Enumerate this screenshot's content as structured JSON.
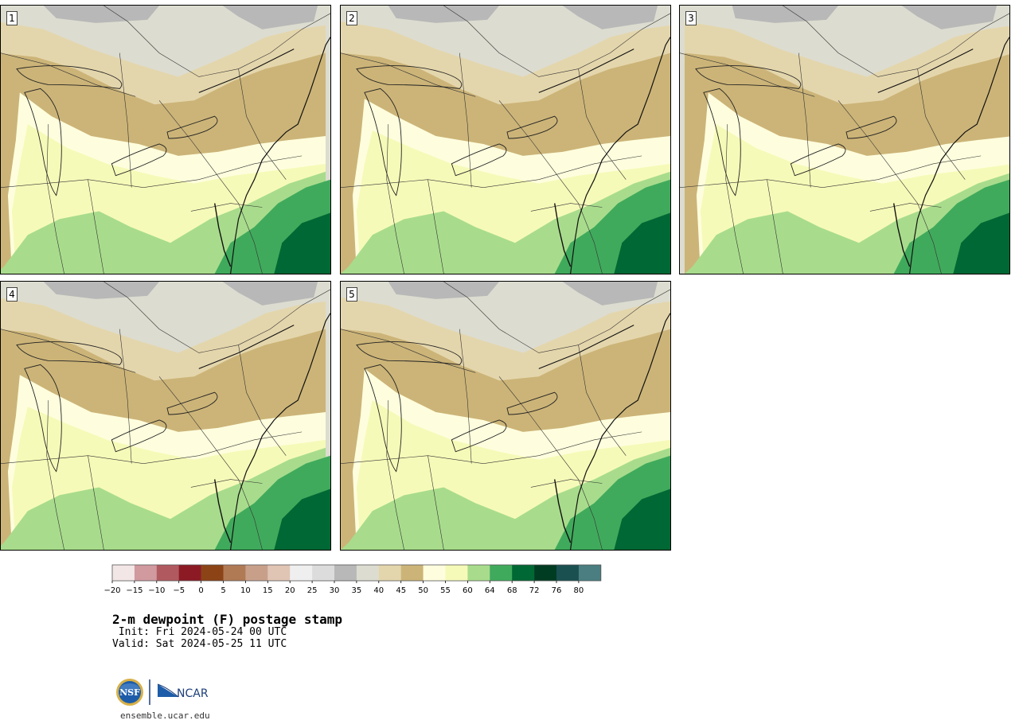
{
  "panels": [
    {
      "label": "1",
      "variant": 0
    },
    {
      "label": "2",
      "variant": 1
    },
    {
      "label": "3",
      "variant": 2
    },
    {
      "label": "4",
      "variant": 3
    },
    {
      "label": "5",
      "variant": 4
    }
  ],
  "colorbar": {
    "colors": [
      "#f3e6e6",
      "#d09a9f",
      "#b05a60",
      "#8c1a24",
      "#8c4416",
      "#b07a55",
      "#c8a08a",
      "#e0c4b4",
      "#efefef",
      "#dcdcdc",
      "#b8b8b8",
      "#dcdcd0",
      "#e4d6ac",
      "#ccb478",
      "#fefede",
      "#f6fab8",
      "#a8dc8c",
      "#40aa5c",
      "#006834",
      "#003c22",
      "#1a5050",
      "#4a7e80"
    ],
    "tick_labels": [
      "−20",
      "−15",
      "−10",
      "−5",
      "0",
      "5",
      "10",
      "15",
      "20",
      "25",
      "30",
      "35",
      "40",
      "45",
      "50",
      "55",
      "60",
      "64",
      "68",
      "72",
      "76",
      "80"
    ]
  },
  "title": "2-m dewpoint (F) postage stamp",
  "init_line": " Init: Fri 2024-05-24 00 UTC",
  "valid_line": "Valid: Sat 2024-05-25 11 UTC",
  "logo": {
    "nsf_text": "NSF",
    "ncar_text": "NCAR"
  },
  "url": "ensemble.ucar.edu"
}
